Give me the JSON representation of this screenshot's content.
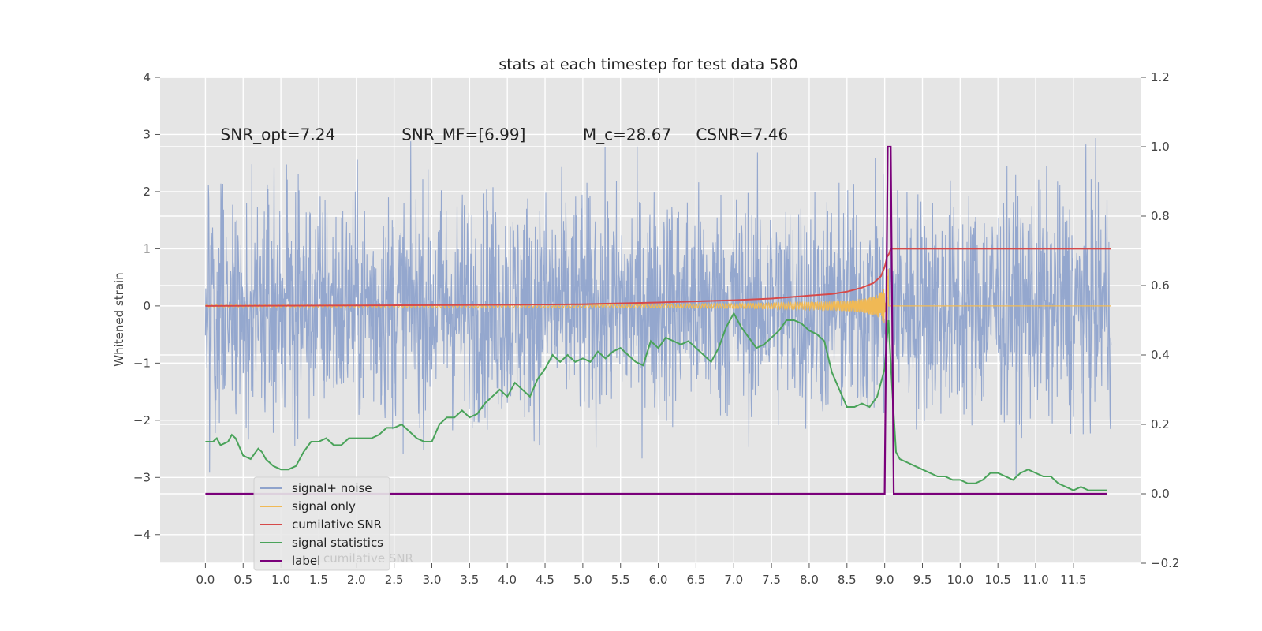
{
  "chart_data": {
    "type": "line",
    "title": "stats at each timestep for test data 580",
    "ylabel": "Whitened strain",
    "xlabel": "",
    "grid": true,
    "legend_position": "lower-left",
    "xlim": [
      -0.6,
      12.4
    ],
    "ylim_left": [
      -4.5,
      4.0
    ],
    "ylim_right": [
      -0.2,
      1.2
    ],
    "x_ticks": [
      "0.0",
      "0.5",
      "1.0",
      "1.5",
      "2.0",
      "2.5",
      "3.0",
      "3.5",
      "4.0",
      "4.5",
      "5.0",
      "5.5",
      "6.0",
      "6.5",
      "7.0",
      "7.5",
      "8.0",
      "8.5",
      "9.0",
      "9.5",
      "10.0",
      "10.5",
      "11.0",
      "11.5"
    ],
    "y_ticks_left": [
      "4",
      "3",
      "2",
      "1",
      "0",
      "−1",
      "−2",
      "−3",
      "−4"
    ],
    "y_ticks_right": [
      "1.2",
      "1.0",
      "0.8",
      "0.6",
      "0.4",
      "0.2",
      "0.0",
      "−0.2"
    ],
    "annotations": [
      {
        "text": "SNR_opt=7.24",
        "x": 0.2,
        "y": 2.9
      },
      {
        "text": "SNR_MF=[6.99]",
        "x": 2.6,
        "y": 2.9
      },
      {
        "text": "M_c=28.67",
        "x": 5.0,
        "y": 2.9
      },
      {
        "text": "CSNR=7.46",
        "x": 6.5,
        "y": 2.9
      }
    ],
    "colors": {
      "noise": "#8fa3cc",
      "signal": "#f0b955",
      "csnr": "#d64a4a",
      "stats": "#4aa35a",
      "label": "#7a007a",
      "grid": "#ffffff",
      "bg": "#e5e5e5"
    },
    "series": [
      {
        "name": "signal+ noise",
        "axis": "left",
        "noise_amplitude": 1.0,
        "x_range": [
          0.0,
          12.0
        ]
      },
      {
        "name": "signal only",
        "axis": "left",
        "merger_time": 9.05,
        "peak_amplitude": 0.7
      },
      {
        "name": "cumilative SNR",
        "axis": "left",
        "x": [
          0.0,
          2.0,
          4.0,
          5.0,
          6.0,
          7.0,
          7.5,
          8.0,
          8.3,
          8.5,
          8.7,
          8.85,
          8.95,
          9.0,
          9.03,
          9.06,
          9.08,
          9.1,
          12.0
        ],
        "y": [
          0.0,
          0.01,
          0.02,
          0.03,
          0.06,
          0.1,
          0.13,
          0.18,
          0.21,
          0.25,
          0.32,
          0.4,
          0.52,
          0.68,
          0.85,
          0.92,
          1.0,
          1.0,
          1.0
        ]
      },
      {
        "name": "signal statistics",
        "axis": "right",
        "x": [
          0.0,
          0.1,
          0.15,
          0.2,
          0.3,
          0.35,
          0.4,
          0.5,
          0.6,
          0.7,
          0.75,
          0.8,
          0.9,
          1.0,
          1.1,
          1.2,
          1.3,
          1.4,
          1.5,
          1.6,
          1.7,
          1.8,
          1.9,
          2.0,
          2.1,
          2.2,
          2.3,
          2.4,
          2.5,
          2.6,
          2.7,
          2.8,
          2.9,
          3.0,
          3.1,
          3.2,
          3.3,
          3.4,
          3.5,
          3.6,
          3.7,
          3.8,
          3.9,
          4.0,
          4.1,
          4.2,
          4.3,
          4.4,
          4.5,
          4.6,
          4.7,
          4.8,
          4.9,
          5.0,
          5.1,
          5.2,
          5.3,
          5.4,
          5.5,
          5.6,
          5.7,
          5.8,
          5.9,
          6.0,
          6.1,
          6.2,
          6.3,
          6.4,
          6.5,
          6.6,
          6.7,
          6.8,
          6.9,
          7.0,
          7.1,
          7.2,
          7.3,
          7.4,
          7.5,
          7.6,
          7.7,
          7.8,
          7.9,
          8.0,
          8.1,
          8.2,
          8.3,
          8.4,
          8.5,
          8.6,
          8.7,
          8.8,
          8.9,
          9.0,
          9.05,
          9.1,
          9.15,
          9.2,
          9.3,
          9.4,
          9.5,
          9.6,
          9.7,
          9.8,
          9.9,
          10.0,
          10.1,
          10.2,
          10.3,
          10.4,
          10.5,
          10.6,
          10.7,
          10.8,
          10.9,
          11.0,
          11.1,
          11.2,
          11.3,
          11.4,
          11.5,
          11.6,
          11.7,
          11.8,
          11.9,
          11.95
        ],
        "y": [
          0.15,
          0.15,
          0.16,
          0.14,
          0.15,
          0.17,
          0.16,
          0.11,
          0.1,
          0.13,
          0.12,
          0.1,
          0.08,
          0.07,
          0.07,
          0.08,
          0.12,
          0.15,
          0.15,
          0.16,
          0.14,
          0.14,
          0.16,
          0.16,
          0.16,
          0.16,
          0.17,
          0.19,
          0.19,
          0.2,
          0.18,
          0.16,
          0.15,
          0.15,
          0.2,
          0.22,
          0.22,
          0.24,
          0.22,
          0.23,
          0.26,
          0.28,
          0.3,
          0.28,
          0.32,
          0.3,
          0.28,
          0.33,
          0.36,
          0.4,
          0.38,
          0.4,
          0.38,
          0.39,
          0.38,
          0.41,
          0.39,
          0.41,
          0.42,
          0.4,
          0.38,
          0.37,
          0.44,
          0.42,
          0.45,
          0.44,
          0.43,
          0.44,
          0.42,
          0.4,
          0.38,
          0.42,
          0.48,
          0.52,
          0.48,
          0.45,
          0.42,
          0.43,
          0.45,
          0.47,
          0.5,
          0.5,
          0.49,
          0.47,
          0.46,
          0.44,
          0.35,
          0.3,
          0.25,
          0.25,
          0.26,
          0.25,
          0.28,
          0.36,
          0.5,
          0.3,
          0.12,
          0.1,
          0.09,
          0.08,
          0.07,
          0.06,
          0.05,
          0.05,
          0.04,
          0.04,
          0.03,
          0.03,
          0.04,
          0.06,
          0.06,
          0.05,
          0.04,
          0.06,
          0.07,
          0.06,
          0.05,
          0.05,
          0.03,
          0.02,
          0.01,
          0.02,
          0.01,
          0.01,
          0.01,
          0.01
        ]
      },
      {
        "name": "label",
        "axis": "right",
        "x": [
          0.0,
          9.0,
          9.04,
          9.08,
          9.12,
          11.95
        ],
        "y": [
          0.0,
          0.0,
          1.0,
          1.0,
          0.0,
          0.0
        ]
      }
    ],
    "legend": [
      "signal+ noise",
      "signal only",
      "cumilative SNR",
      "signal statistics",
      "label"
    ],
    "legend_ghost_text": "cumilative SNR"
  }
}
